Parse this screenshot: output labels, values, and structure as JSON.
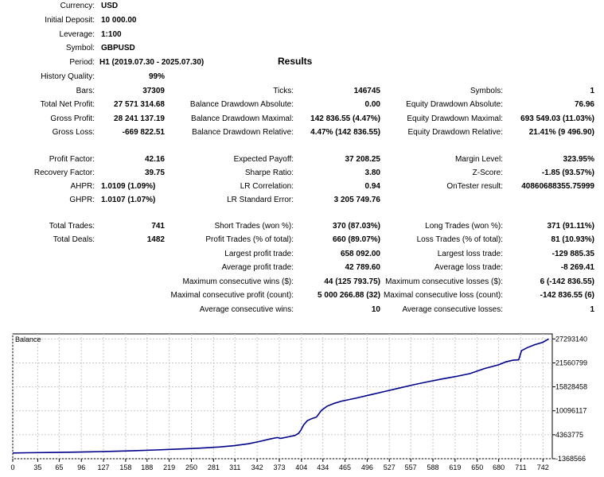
{
  "header": {
    "currency": {
      "label": "Currency:",
      "value": "USD"
    },
    "deposit": {
      "label": "Initial Deposit:",
      "value": "10 000.00"
    },
    "leverage": {
      "label": "Leverage:",
      "value": "1:100"
    },
    "symbol": {
      "label": "Symbol:",
      "value": "GBPUSD"
    },
    "period": {
      "label": "Period:",
      "value": "H1 (2019.07.30 - 2025.07.30)"
    },
    "history_quality": {
      "label": "History Quality:",
      "value": "99%"
    }
  },
  "results_title": "Results",
  "stats": {
    "bars": {
      "label": "Bars:",
      "value": "37309"
    },
    "ticks": {
      "label": "Ticks:",
      "value": "146745"
    },
    "symbols": {
      "label": "Symbols:",
      "value": "1"
    },
    "net_profit": {
      "label": "Total Net Profit:",
      "value": "27 571 314.68"
    },
    "bal_dd_abs": {
      "label": "Balance Drawdown Absolute:",
      "value": "0.00"
    },
    "eq_dd_abs": {
      "label": "Equity Drawdown Absolute:",
      "value": "76.96"
    },
    "gross_profit": {
      "label": "Gross Profit:",
      "value": "28 241 137.19"
    },
    "bal_dd_max": {
      "label": "Balance Drawdown Maximal:",
      "value": "142 836.55 (4.47%)"
    },
    "eq_dd_max": {
      "label": "Equity Drawdown Maximal:",
      "value": "693 549.03 (11.03%)"
    },
    "gross_loss": {
      "label": "Gross Loss:",
      "value": "-669 822.51"
    },
    "bal_dd_rel": {
      "label": "Balance Drawdown Relative:",
      "value": "4.47% (142 836.55)"
    },
    "eq_dd_rel": {
      "label": "Equity Drawdown Relative:",
      "value": "21.41% (9 496.90)"
    },
    "profit_factor": {
      "label": "Profit Factor:",
      "value": "42.16"
    },
    "expected_payoff": {
      "label": "Expected Payoff:",
      "value": "37 208.25"
    },
    "margin_level": {
      "label": "Margin Level:",
      "value": "323.95%"
    },
    "recovery_factor": {
      "label": "Recovery Factor:",
      "value": "39.75"
    },
    "sharpe": {
      "label": "Sharpe Ratio:",
      "value": "3.80"
    },
    "zscore": {
      "label": "Z-Score:",
      "value": "-1.85 (93.57%)"
    },
    "ahpr": {
      "label": "AHPR:",
      "value": "1.0109 (1.09%)"
    },
    "lr_corr": {
      "label": "LR Correlation:",
      "value": "0.94"
    },
    "ontester": {
      "label": "OnTester result:",
      "value": "40860688355.75999"
    },
    "ghpr": {
      "label": "GHPR:",
      "value": "1.0107 (1.07%)"
    },
    "lr_std": {
      "label": "LR Standard Error:",
      "value": "3 205 749.76"
    },
    "total_trades": {
      "label": "Total Trades:",
      "value": "741"
    },
    "short_trades": {
      "label": "Short Trades (won %):",
      "value": "370 (87.03%)"
    },
    "long_trades": {
      "label": "Long Trades (won %):",
      "value": "371 (91.11%)"
    },
    "total_deals": {
      "label": "Total Deals:",
      "value": "1482"
    },
    "profit_trades": {
      "label": "Profit Trades (% of total):",
      "value": "660 (89.07%)"
    },
    "loss_trades": {
      "label": "Loss Trades (% of total):",
      "value": "81 (10.93%)"
    },
    "largest_profit": {
      "label": "Largest profit trade:",
      "value": "658 092.00"
    },
    "largest_loss": {
      "label": "Largest loss trade:",
      "value": "-129 885.35"
    },
    "avg_profit": {
      "label": "Average profit trade:",
      "value": "42 789.60"
    },
    "avg_loss": {
      "label": "Average loss trade:",
      "value": "-8 269.41"
    },
    "max_consec_wins": {
      "label": "Maximum consecutive wins ($):",
      "value": "44 (125 793.75)"
    },
    "max_consec_losses": {
      "label": "Maximum consecutive losses ($):",
      "value": "6 (-142 836.55)"
    },
    "maximal_consec_profit": {
      "label": "Maximal consecutive profit (count):",
      "value": "5 000 266.88 (32)"
    },
    "maximal_consec_loss": {
      "label": "Maximal consecutive loss (count):",
      "value": "-142 836.55 (6)"
    },
    "avg_consec_wins": {
      "label": "Average consecutive wins:",
      "value": "10"
    },
    "avg_consec_losses": {
      "label": "Average consecutive losses:",
      "value": "1"
    }
  },
  "chart_data": {
    "type": "line",
    "title": "Balance",
    "xlabel": "",
    "ylabel": "",
    "xlim": [
      0,
      755
    ],
    "ylim": [
      -1368566,
      28500000
    ],
    "x_ticks": [
      0,
      35,
      65,
      96,
      127,
      158,
      188,
      219,
      250,
      281,
      311,
      342,
      373,
      404,
      434,
      465,
      496,
      527,
      557,
      588,
      619,
      650,
      680,
      711,
      742
    ],
    "y_ticks": [
      27293140,
      21560799,
      15828458,
      10096117,
      4363775,
      -1368566
    ],
    "grid": true,
    "line_color": "#00008b",
    "series": [
      {
        "x": [
          0,
          20,
          50,
          80,
          110,
          140,
          170,
          200,
          230,
          260,
          290,
          310,
          330,
          345,
          360,
          370,
          375,
          385,
          395,
          400,
          403,
          407,
          412,
          418,
          425,
          432,
          440,
          450,
          460,
          480,
          500,
          520,
          540,
          560,
          580,
          600,
          620,
          640,
          660,
          680,
          690,
          700,
          708,
          712,
          720,
          730,
          742,
          750
        ],
        "y": [
          10000,
          50000,
          110000,
          190000,
          290000,
          410000,
          560000,
          730000,
          930000,
          1150000,
          1450000,
          1750000,
          2200000,
          2750000,
          3350000,
          3700000,
          3500000,
          3850000,
          4200000,
          4700000,
          5400000,
          6700000,
          7700000,
          8200000,
          8600000,
          10200000,
          11200000,
          11900000,
          12400000,
          13100000,
          13900000,
          14700000,
          15500000,
          16300000,
          17000000,
          17700000,
          18300000,
          19000000,
          20200000,
          21100000,
          21800000,
          22200000,
          22300000,
          24500000,
          25200000,
          25900000,
          26500000,
          27293140
        ]
      }
    ]
  }
}
